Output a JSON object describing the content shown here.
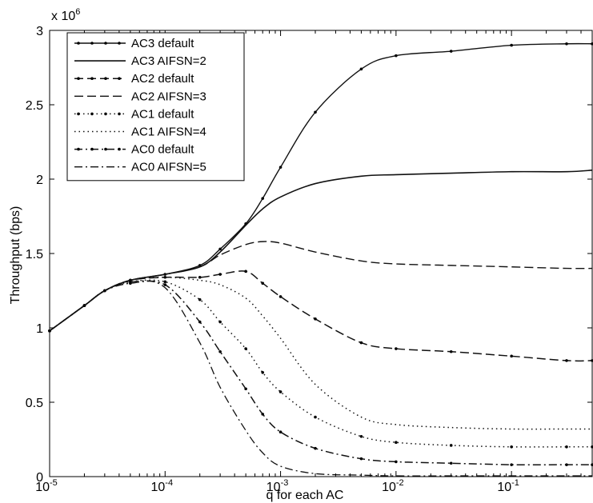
{
  "chart_data": {
    "type": "line",
    "xscale": "log",
    "xlim": [
      1e-05,
      0.5
    ],
    "ylim": [
      0,
      3000000
    ],
    "xlabel": "q for each AC",
    "ylabel": "Throughput (bps)",
    "y_multiplier_label": "x 10",
    "y_multiplier_exp": "6",
    "xticks": [
      {
        "value": 1e-05,
        "base": "10",
        "exp": "-5"
      },
      {
        "value": 0.0001,
        "base": "10",
        "exp": "-4"
      },
      {
        "value": 0.001,
        "base": "10",
        "exp": "-3"
      },
      {
        "value": 0.01,
        "base": "10",
        "exp": "-2"
      },
      {
        "value": 0.1,
        "base": "10",
        "exp": "-1"
      }
    ],
    "yticks": [
      {
        "value": 0,
        "label": "0"
      },
      {
        "value": 500000,
        "label": "0.5"
      },
      {
        "value": 1000000,
        "label": "1"
      },
      {
        "value": 1500000,
        "label": "1.5"
      },
      {
        "value": 2000000,
        "label": "2"
      },
      {
        "value": 2500000,
        "label": "2.5"
      },
      {
        "value": 3000000,
        "label": "3"
      }
    ],
    "grid": false,
    "legend_position": "top-left",
    "x": [
      1e-05,
      2e-05,
      3e-05,
      5e-05,
      0.0001,
      0.0002,
      0.0003,
      0.0005,
      0.0007,
      0.001,
      0.002,
      0.005,
      0.01,
      0.03,
      0.1,
      0.3,
      0.5
    ],
    "series": [
      {
        "name": "AC3 default",
        "style": "solid-dot",
        "values": [
          980000,
          1150000,
          1250000,
          1320000,
          1360000,
          1420000,
          1530000,
          1700000,
          1870000,
          2080000,
          2450000,
          2740000,
          2830000,
          2860000,
          2900000,
          2910000,
          2910000
        ]
      },
      {
        "name": "AC3 AIFSN=2",
        "style": "solid",
        "values": [
          980000,
          1150000,
          1250000,
          1320000,
          1360000,
          1410000,
          1510000,
          1690000,
          1800000,
          1880000,
          1970000,
          2020000,
          2030000,
          2040000,
          2050000,
          2050000,
          2060000
        ]
      },
      {
        "name": "AC2 default",
        "style": "dash-dot",
        "values": [
          980000,
          1150000,
          1250000,
          1320000,
          1340000,
          1340000,
          1360000,
          1380000,
          1300000,
          1210000,
          1060000,
          900000,
          860000,
          840000,
          810000,
          780000,
          780000
        ]
      },
      {
        "name": "AC2 AIFSN=3",
        "style": "dash",
        "values": [
          980000,
          1150000,
          1250000,
          1320000,
          1360000,
          1410000,
          1490000,
          1560000,
          1580000,
          1570000,
          1510000,
          1450000,
          1430000,
          1420000,
          1410000,
          1400000,
          1400000
        ]
      },
      {
        "name": "AC1 default",
        "style": "dot-dot",
        "values": [
          980000,
          1150000,
          1250000,
          1310000,
          1310000,
          1190000,
          1040000,
          860000,
          700000,
          570000,
          400000,
          270000,
          230000,
          210000,
          200000,
          200000,
          200000
        ]
      },
      {
        "name": "AC1 AIFSN=4",
        "style": "dot",
        "values": [
          980000,
          1150000,
          1250000,
          1320000,
          1340000,
          1320000,
          1290000,
          1200000,
          1080000,
          930000,
          620000,
          400000,
          350000,
          330000,
          320000,
          320000,
          320000
        ]
      },
      {
        "name": "AC0 default",
        "style": "dashdot-dot",
        "values": [
          980000,
          1150000,
          1250000,
          1300000,
          1290000,
          1040000,
          840000,
          590000,
          420000,
          300000,
          190000,
          120000,
          100000,
          90000,
          80000,
          80000,
          80000
        ]
      },
      {
        "name": "AC0 AIFSN=5",
        "style": "dashdot",
        "values": [
          980000,
          1150000,
          1250000,
          1310000,
          1270000,
          900000,
          600000,
          310000,
          160000,
          70000,
          20000,
          10000,
          5000,
          5000,
          5000,
          5000,
          5000
        ]
      }
    ]
  }
}
